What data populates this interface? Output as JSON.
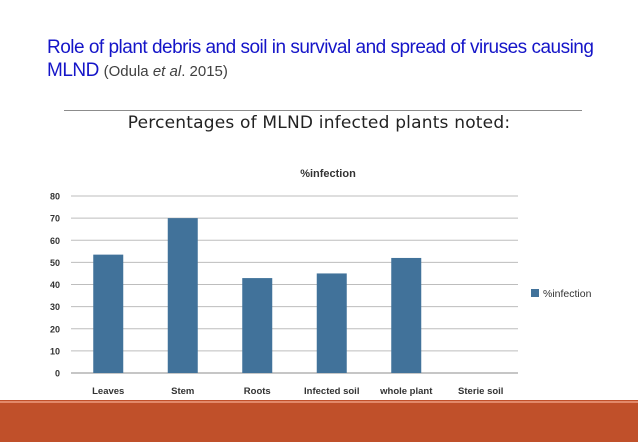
{
  "slide": {
    "title_main": "Role of plant debris and soil in survival and spread of viruses causing MLND",
    "citation_open": "(Odula ",
    "citation_etal": "et al",
    "citation_close": ". 2015)",
    "subtitle": "Percentages of MLND infected plants noted:"
  },
  "colors": {
    "bar": "#41729a",
    "footer": "#c0502a",
    "title": "#1515c8"
  },
  "chart_data": {
    "type": "bar",
    "title": "%infection",
    "categories": [
      "Leaves",
      "Stem",
      "Roots",
      "Infected soil",
      "whole plant",
      "Sterie soil"
    ],
    "series": [
      {
        "name": "%infection",
        "values": [
          53.5,
          70,
          42.9,
          45,
          52,
          0
        ]
      }
    ],
    "ylim": [
      0,
      80
    ],
    "yticks": [
      0,
      10,
      20,
      30,
      40,
      50,
      60,
      70,
      80
    ],
    "grid": true,
    "legend": "right",
    "xlabel": "",
    "ylabel": ""
  }
}
